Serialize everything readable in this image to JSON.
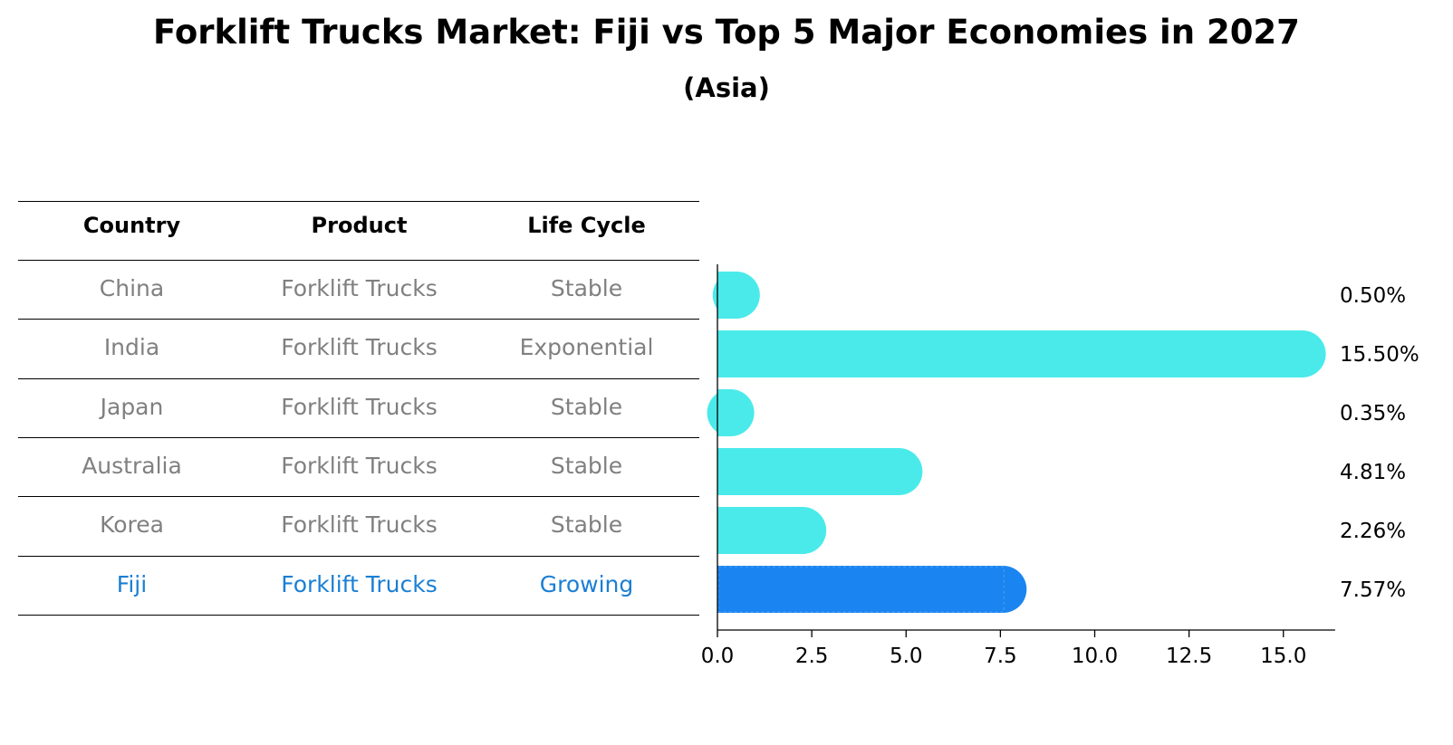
{
  "title": "Forklift Trucks Market: Fiji vs Top 5 Major Economies in 2027",
  "subtitle": "(Asia)",
  "table": {
    "headers": [
      "Country",
      "Product",
      "Life Cycle"
    ],
    "rows": [
      {
        "country": "China",
        "product": "Forklift Trucks",
        "life_cycle": "Stable",
        "highlight": false
      },
      {
        "country": "India",
        "product": "Forklift Trucks",
        "life_cycle": "Exponential",
        "highlight": false
      },
      {
        "country": "Japan",
        "product": "Forklift Trucks",
        "life_cycle": "Stable",
        "highlight": false
      },
      {
        "country": "Australia",
        "product": "Forklift Trucks",
        "life_cycle": "Stable",
        "highlight": false
      },
      {
        "country": "Korea",
        "product": "Forklift Trucks",
        "life_cycle": "Stable",
        "highlight": false
      },
      {
        "country": "Fiji",
        "product": "Forklift Trucks",
        "life_cycle": "Growing",
        "highlight": true
      }
    ]
  },
  "colors": {
    "bar": "#4aeaea",
    "highlight": "#1a85f0",
    "muted_text": "#808080",
    "highlight_text": "#1a7fd4"
  },
  "chart_data": {
    "type": "bar",
    "orientation": "horizontal",
    "categories": [
      "China",
      "India",
      "Japan",
      "Australia",
      "Korea",
      "Fiji"
    ],
    "values": [
      0.5,
      15.5,
      0.35,
      4.81,
      2.26,
      7.57
    ],
    "value_labels": [
      "0.50%",
      "15.50%",
      "0.35%",
      "4.81%",
      "2.26%",
      "7.57%"
    ],
    "highlight_category": "Fiji",
    "xlim": [
      0,
      16.3
    ],
    "xticks": [
      0.0,
      2.5,
      5.0,
      7.5,
      10.0,
      12.5,
      15.0
    ],
    "xtick_labels": [
      "0.0",
      "2.5",
      "5.0",
      "7.5",
      "10.0",
      "12.5",
      "15.0"
    ],
    "grid": false
  }
}
